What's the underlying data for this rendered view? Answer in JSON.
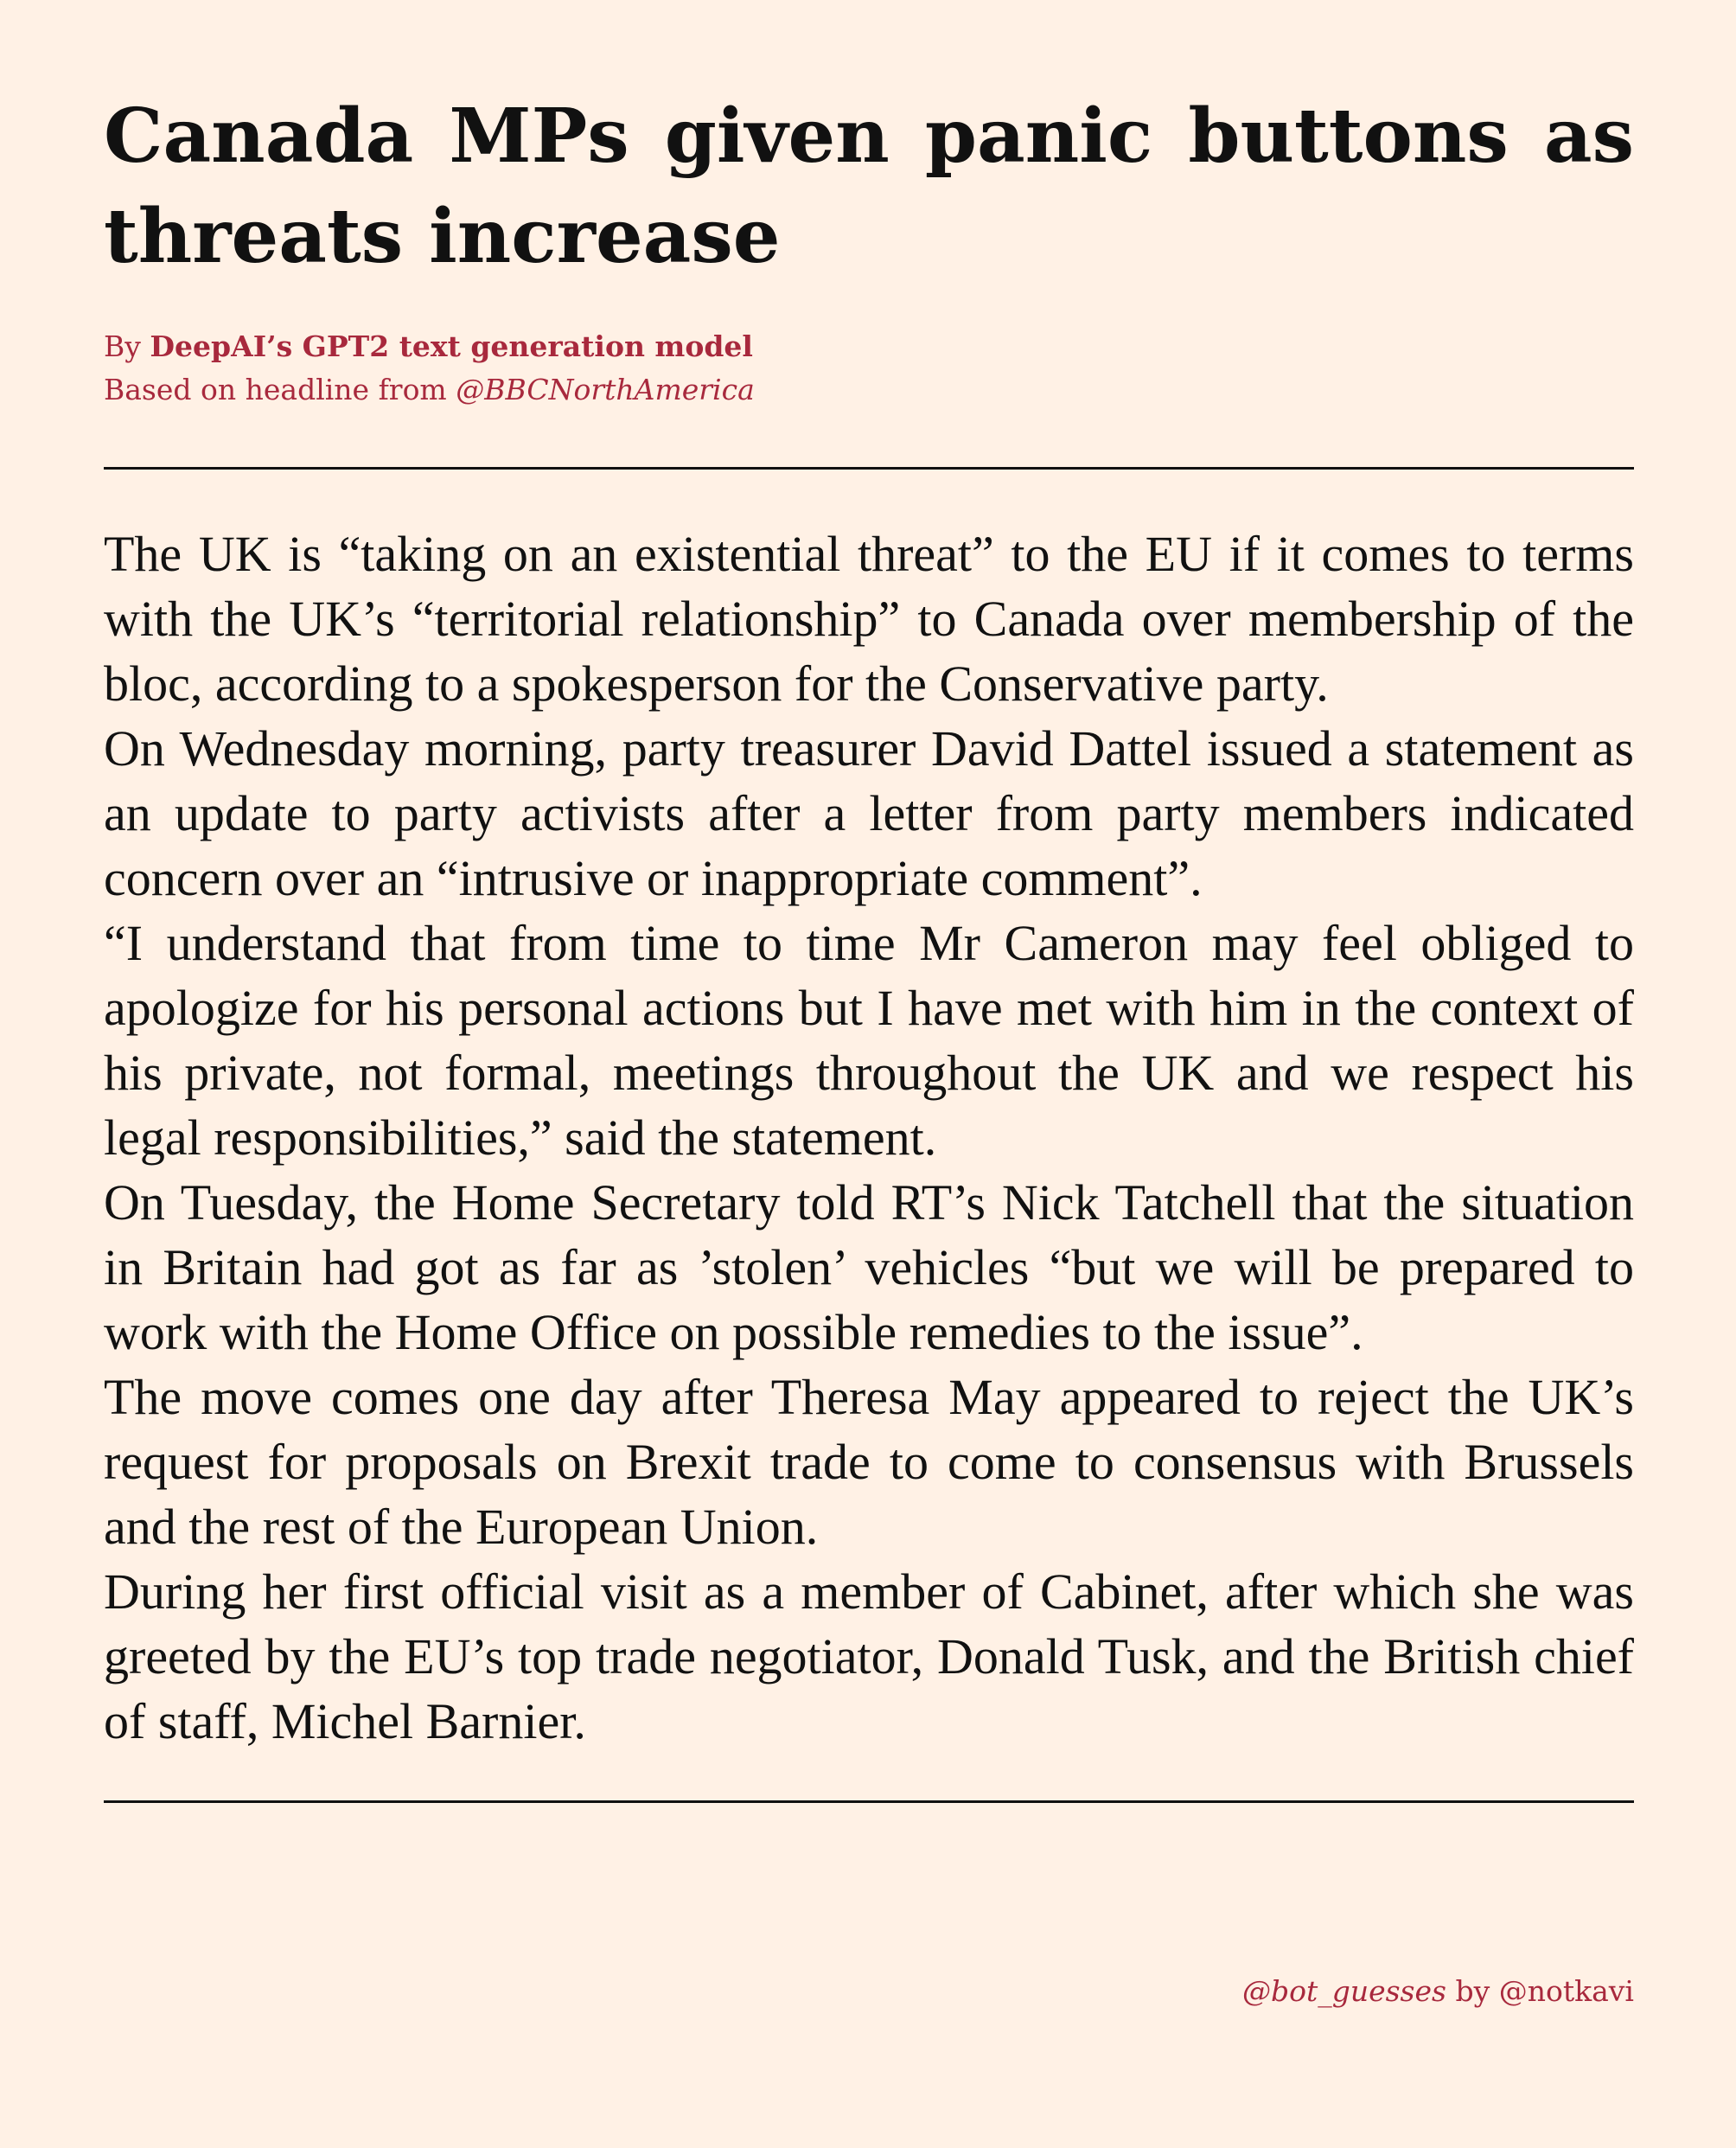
{
  "article": {
    "headline": "Canada MPs given panic buttons as threats increase",
    "byline": {
      "prefix": "By",
      "author": "DeepAI’s GPT2 text generation model",
      "based_on_prefix": "Based on headline from",
      "source": "@BBCNorthAmerica"
    },
    "paragraphs": [
      "The UK is “taking on an existential threat” to the EU if it comes to terms with the UK’s “territorial relationship” to Canada over mem­bership of the bloc, according to a spokesperson for the Conservative party.",
      "On Wednesday morning, party treasurer David Dattel issued a state­ment as an update to party activists after a letter from party members indicated concern over an “intrusive or inappropriate comment”.",
      "“I understand that from time to time Mr Cameron may feel obliged to apologize for his personal actions but I have met with him in the context of his private, not formal, meetings throughout the UK and we respect his legal responsibilities,” said the statement.",
      "On Tuesday, the Home Secretary told RT’s Nick Tatchell that the sit­uation in Britain had got as far as ’stolen’ vehicles “but we will be prepared to work with the Home Office on possible remedies to the issue”.",
      "The move comes one day after Theresa May appeared to reject the UK’s request for proposals on Brexit trade to come to consensus with Brussels and the rest of the European Union.",
      "During her first official visit as a member of Cabinet, after which she was greeted by the EU’s top trade negotiator, Donald Tusk, and the British chief of staff, Michel Barnier."
    ]
  },
  "footer": {
    "bot_handle": "@bot_guesses",
    "by": "by",
    "author_handle": "@notkavi"
  },
  "colors": {
    "background": "#fff1e5",
    "text": "#111111",
    "accent": "#a8293d"
  }
}
